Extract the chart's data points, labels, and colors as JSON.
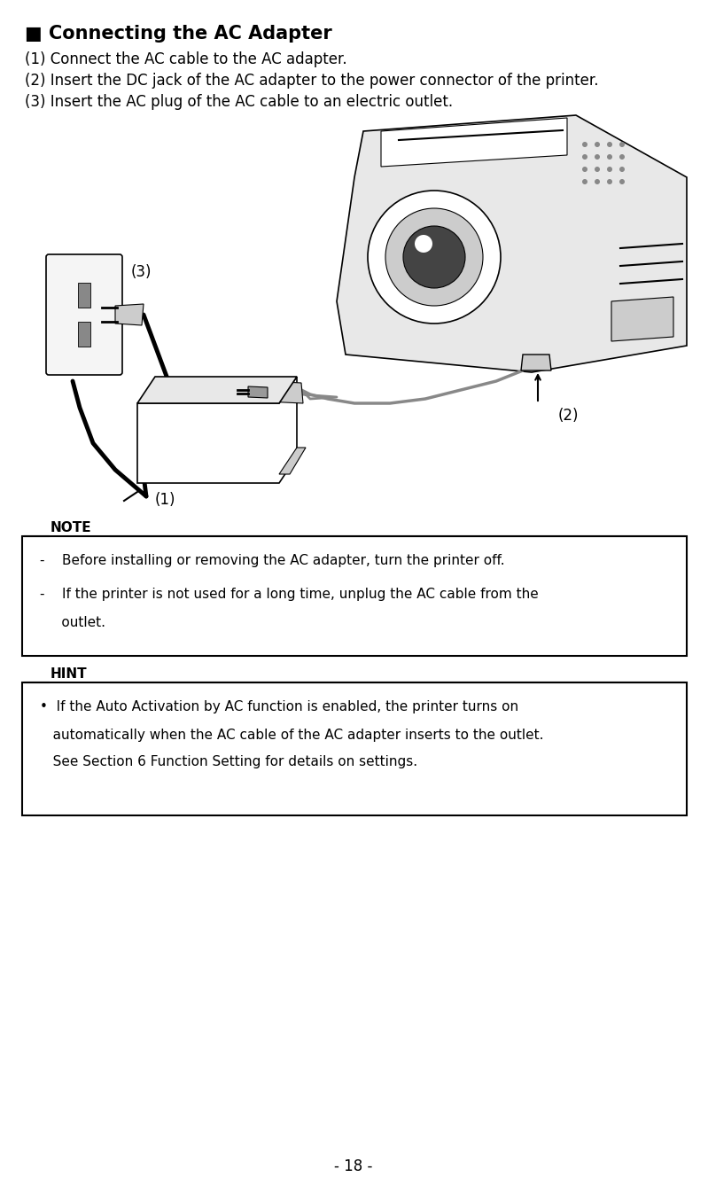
{
  "title": "■ Connecting the AC Adapter",
  "step1": "(1) Connect the AC cable to the AC adapter.",
  "step2": "(2) Insert the DC jack of the AC adapter to the power connector of the printer.",
  "step3": "(3) Insert the AC plug of the AC cable to an electric outlet.",
  "note_header": "NOTE",
  "note_line1": "-    Before installing or removing the AC adapter, turn the printer off.",
  "note_line2": "-    If the printer is not used for a long time, unplug the AC cable from the",
  "note_line2b": "     outlet.",
  "hint_header": "HINT",
  "hint_bullet": "•  If the Auto Activation by AC function is enabled, the printer turns on",
  "hint_line2": "   automatically when the AC cable of the AC adapter inserts to the outlet.",
  "hint_line3": "   See Section 6 Function Setting for details on settings.",
  "page_number": "- 18 -",
  "bg_color": "#ffffff",
  "text_color": "#000000"
}
